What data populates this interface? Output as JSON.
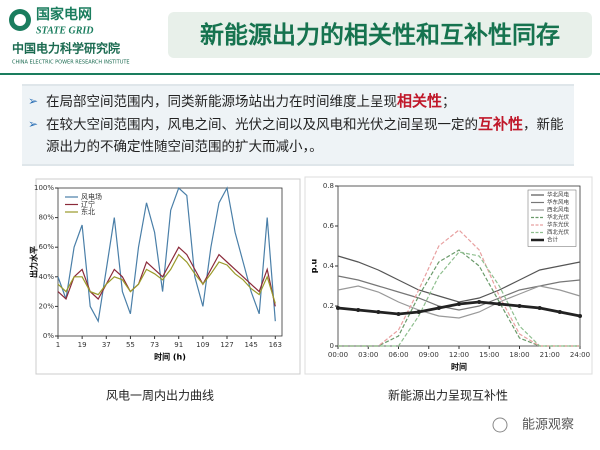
{
  "header": {
    "logo_cn": "国家电网",
    "logo_en": "STATE GRID",
    "institute_cn": "中国电力科学研究院",
    "institute_en": "CHINA ELECTRIC POWER RESEARCH INSTITUTE",
    "title": "新能源出力的相关性和互补性同存"
  },
  "bullets": [
    [
      "在局部空间范围内，同类新能源场站出力在时间维度上呈现",
      "相关性",
      "；"
    ],
    [
      "在较大空间范围内，风电之间、光伏之间以及风电和光伏之间呈现一定的",
      "互补性",
      "，新能源出力的不确定性随空间范围的扩大而减小，。"
    ]
  ],
  "chart_data": [
    {
      "type": "line",
      "xlabel": "时间 (h)",
      "ylabel": "出力水平",
      "legend": "upper left",
      "x": [
        1,
        7,
        13,
        19,
        25,
        31,
        37,
        43,
        49,
        55,
        61,
        67,
        73,
        79,
        85,
        91,
        97,
        103,
        109,
        115,
        121,
        127,
        133,
        139,
        145,
        151,
        157,
        163
      ],
      "xlim": [
        1,
        168
      ],
      "xticks": [
        1,
        19,
        37,
        55,
        73,
        91,
        109,
        127,
        145,
        163
      ],
      "ylim": [
        0,
        100
      ],
      "yticks": [
        {
          "value": 0,
          "label": "0%"
        },
        {
          "value": 20,
          "label": "20%"
        },
        {
          "value": 40,
          "label": "40%"
        },
        {
          "value": 60,
          "label": "60%"
        },
        {
          "value": 80,
          "label": "80%"
        },
        {
          "value": 100,
          "label": "100%"
        }
      ],
      "series": [
        {
          "name": "风电场",
          "color": "#4a7fa8",
          "values": [
            40,
            25,
            60,
            75,
            20,
            10,
            45,
            80,
            30,
            15,
            60,
            90,
            70,
            30,
            85,
            100,
            95,
            40,
            20,
            60,
            90,
            100,
            70,
            50,
            30,
            15,
            80,
            10
          ]
        },
        {
          "name": "辽宁",
          "color": "#8b2a3a",
          "values": [
            30,
            25,
            40,
            45,
            30,
            25,
            35,
            45,
            40,
            30,
            35,
            50,
            45,
            40,
            50,
            60,
            55,
            45,
            35,
            45,
            55,
            50,
            45,
            40,
            35,
            30,
            45,
            20
          ]
        },
        {
          "name": "东北",
          "color": "#9a9a2a",
          "values": [
            35,
            30,
            40,
            40,
            30,
            28,
            35,
            40,
            38,
            30,
            35,
            45,
            42,
            38,
            45,
            55,
            50,
            42,
            35,
            42,
            50,
            48,
            42,
            38,
            32,
            28,
            40,
            22
          ]
        }
      ]
    },
    {
      "type": "line",
      "xlabel": "时间",
      "ylabel": "p.u",
      "legend": "upper right",
      "x": [
        0,
        2,
        4,
        6,
        8,
        10,
        12,
        14,
        16,
        18,
        20,
        22,
        24
      ],
      "xlim": [
        0,
        24
      ],
      "xticks": [
        {
          "value": 0,
          "label": "00:00"
        },
        {
          "value": 3,
          "label": "03:00"
        },
        {
          "value": 6,
          "label": "06:00"
        },
        {
          "value": 9,
          "label": "09:00"
        },
        {
          "value": 12,
          "label": "12:00"
        },
        {
          "value": 15,
          "label": "15:00"
        },
        {
          "value": 18,
          "label": "18:00"
        },
        {
          "value": 21,
          "label": "21:00"
        },
        {
          "value": 24,
          "label": "24:00"
        }
      ],
      "ylim": [
        0,
        0.8
      ],
      "yticks": [
        0,
        0.2,
        0.4,
        0.6,
        0.8
      ],
      "series": [
        {
          "name": "华北风电",
          "color": "#555555",
          "values": [
            0.45,
            0.42,
            0.38,
            0.33,
            0.28,
            0.25,
            0.22,
            0.24,
            0.28,
            0.33,
            0.38,
            0.4,
            0.42
          ]
        },
        {
          "name": "华东风电",
          "color": "#777777",
          "values": [
            0.35,
            0.33,
            0.3,
            0.27,
            0.24,
            0.2,
            0.18,
            0.2,
            0.24,
            0.28,
            0.3,
            0.32,
            0.33
          ]
        },
        {
          "name": "西北风电",
          "color": "#999999",
          "values": [
            0.28,
            0.3,
            0.27,
            0.22,
            0.18,
            0.15,
            0.14,
            0.17,
            0.22,
            0.26,
            0.3,
            0.28,
            0.25
          ]
        },
        {
          "name": "华北光伏",
          "color": "#6a9a6a",
          "dash": true,
          "values": [
            0,
            0,
            0,
            0.05,
            0.25,
            0.42,
            0.48,
            0.4,
            0.22,
            0.04,
            0,
            0,
            0
          ]
        },
        {
          "name": "华东光伏",
          "color": "#e8a0a0",
          "dash": true,
          "values": [
            0,
            0,
            0,
            0.08,
            0.28,
            0.5,
            0.58,
            0.48,
            0.25,
            0.06,
            0,
            0,
            0
          ]
        },
        {
          "name": "西北光伏",
          "color": "#8fbf8f",
          "dash": true,
          "values": [
            0,
            0,
            0,
            0,
            0.15,
            0.35,
            0.47,
            0.45,
            0.3,
            0.1,
            0,
            0,
            0
          ]
        },
        {
          "name": "合计",
          "color": "#222222",
          "bold": true,
          "values": [
            0.19,
            0.18,
            0.17,
            0.16,
            0.17,
            0.19,
            0.21,
            0.22,
            0.21,
            0.2,
            0.19,
            0.17,
            0.15
          ]
        }
      ]
    }
  ],
  "captions": [
    "风电一周内出力曲线",
    "新能源出力呈现互补性"
  ],
  "watermark": "能源观察"
}
